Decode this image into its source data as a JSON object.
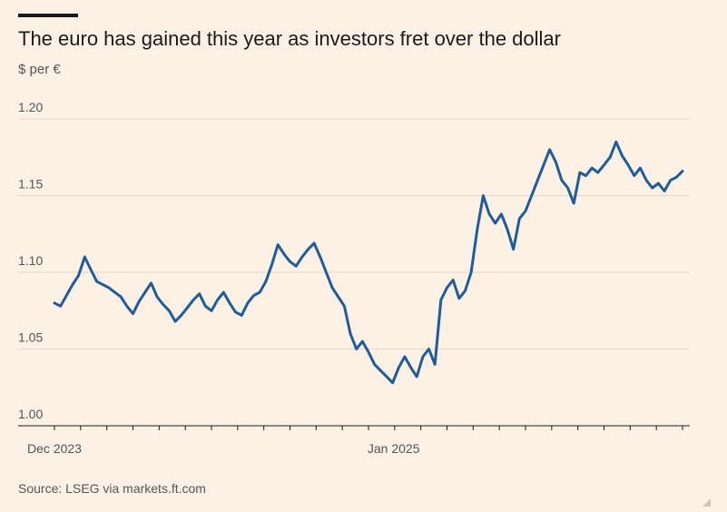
{
  "title": "The euro has gained this year as investors fret over the dollar",
  "subtitle": "$ per €",
  "source": "Source: LSEG via markets.ft.com",
  "colors": {
    "background": "#fdf1e6",
    "line": "#1f5c99",
    "grid": "#e4d8cc",
    "axis": "#1a1a1a"
  },
  "chart_data": {
    "type": "line",
    "title": "The euro has gained this year as investors fret over the dollar",
    "ylabel": "$ per €",
    "xlabel": "",
    "ylim": [
      1.0,
      1.2
    ],
    "y_ticks": [
      "1.20",
      "1.15",
      "1.10",
      "1.05",
      "1.00"
    ],
    "x_ticks": [
      "Dec 2023",
      "Jan 2025"
    ],
    "grid": "horizontal",
    "series": [
      {
        "values": [
          [
            0.0,
            1.08
          ],
          [
            0.5,
            1.078
          ],
          [
            1.0,
            1.085
          ],
          [
            1.5,
            1.092
          ],
          [
            2.0,
            1.098
          ],
          [
            2.5,
            1.11
          ],
          [
            3.0,
            1.102
          ],
          [
            3.5,
            1.094
          ],
          [
            4.0,
            1.092
          ],
          [
            4.5,
            1.09
          ],
          [
            5.0,
            1.087
          ],
          [
            5.5,
            1.084
          ],
          [
            6.0,
            1.078
          ],
          [
            6.5,
            1.073
          ],
          [
            7.0,
            1.081
          ],
          [
            7.5,
            1.087
          ],
          [
            8.0,
            1.093
          ],
          [
            8.5,
            1.084
          ],
          [
            9.0,
            1.079
          ],
          [
            9.5,
            1.075
          ],
          [
            10.0,
            1.068
          ],
          [
            10.5,
            1.072
          ],
          [
            11.0,
            1.077
          ],
          [
            11.5,
            1.082
          ],
          [
            12.0,
            1.086
          ],
          [
            12.5,
            1.078
          ],
          [
            13.0,
            1.075
          ],
          [
            13.5,
            1.082
          ],
          [
            14.0,
            1.087
          ],
          [
            14.5,
            1.08
          ],
          [
            15.0,
            1.074
          ],
          [
            15.5,
            1.072
          ],
          [
            16.0,
            1.08
          ],
          [
            16.5,
            1.085
          ],
          [
            17.0,
            1.087
          ],
          [
            17.5,
            1.094
          ],
          [
            18.0,
            1.105
          ],
          [
            18.5,
            1.118
          ],
          [
            19.0,
            1.112
          ],
          [
            19.5,
            1.107
          ],
          [
            20.0,
            1.104
          ],
          [
            20.5,
            1.11
          ],
          [
            21.0,
            1.115
          ],
          [
            21.5,
            1.119
          ],
          [
            22.0,
            1.11
          ],
          [
            22.5,
            1.1
          ],
          [
            23.0,
            1.09
          ],
          [
            23.5,
            1.084
          ],
          [
            24.0,
            1.078
          ],
          [
            24.5,
            1.06
          ],
          [
            25.0,
            1.05
          ],
          [
            25.5,
            1.055
          ],
          [
            26.0,
            1.048
          ],
          [
            26.5,
            1.04
          ],
          [
            27.0,
            1.036
          ],
          [
            27.5,
            1.032
          ],
          [
            28.0,
            1.028
          ],
          [
            28.5,
            1.038
          ],
          [
            29.0,
            1.045
          ],
          [
            29.5,
            1.038
          ],
          [
            30.0,
            1.032
          ],
          [
            30.5,
            1.045
          ],
          [
            31.0,
            1.05
          ],
          [
            31.5,
            1.04
          ],
          [
            32.0,
            1.082
          ],
          [
            32.5,
            1.09
          ],
          [
            33.0,
            1.095
          ],
          [
            33.5,
            1.083
          ],
          [
            34.0,
            1.088
          ],
          [
            34.5,
            1.1
          ],
          [
            35.0,
            1.128
          ],
          [
            35.5,
            1.15
          ],
          [
            36.0,
            1.138
          ],
          [
            36.5,
            1.132
          ],
          [
            37.0,
            1.138
          ],
          [
            37.5,
            1.128
          ],
          [
            38.0,
            1.115
          ],
          [
            38.5,
            1.135
          ],
          [
            39.0,
            1.14
          ],
          [
            39.5,
            1.15
          ],
          [
            40.0,
            1.16
          ],
          [
            40.5,
            1.17
          ],
          [
            41.0,
            1.18
          ],
          [
            41.5,
            1.172
          ],
          [
            42.0,
            1.16
          ],
          [
            42.5,
            1.155
          ],
          [
            43.0,
            1.145
          ],
          [
            43.5,
            1.165
          ],
          [
            44.0,
            1.163
          ],
          [
            44.5,
            1.168
          ],
          [
            45.0,
            1.165
          ],
          [
            45.5,
            1.17
          ],
          [
            46.0,
            1.175
          ],
          [
            46.5,
            1.185
          ],
          [
            47.0,
            1.176
          ],
          [
            47.5,
            1.17
          ],
          [
            48.0,
            1.163
          ],
          [
            48.5,
            1.168
          ],
          [
            49.0,
            1.16
          ],
          [
            49.5,
            1.155
          ],
          [
            50.0,
            1.158
          ],
          [
            50.5,
            1.153
          ],
          [
            51.0,
            1.16
          ],
          [
            51.5,
            1.162
          ],
          [
            52.0,
            1.166
          ]
        ]
      }
    ]
  }
}
